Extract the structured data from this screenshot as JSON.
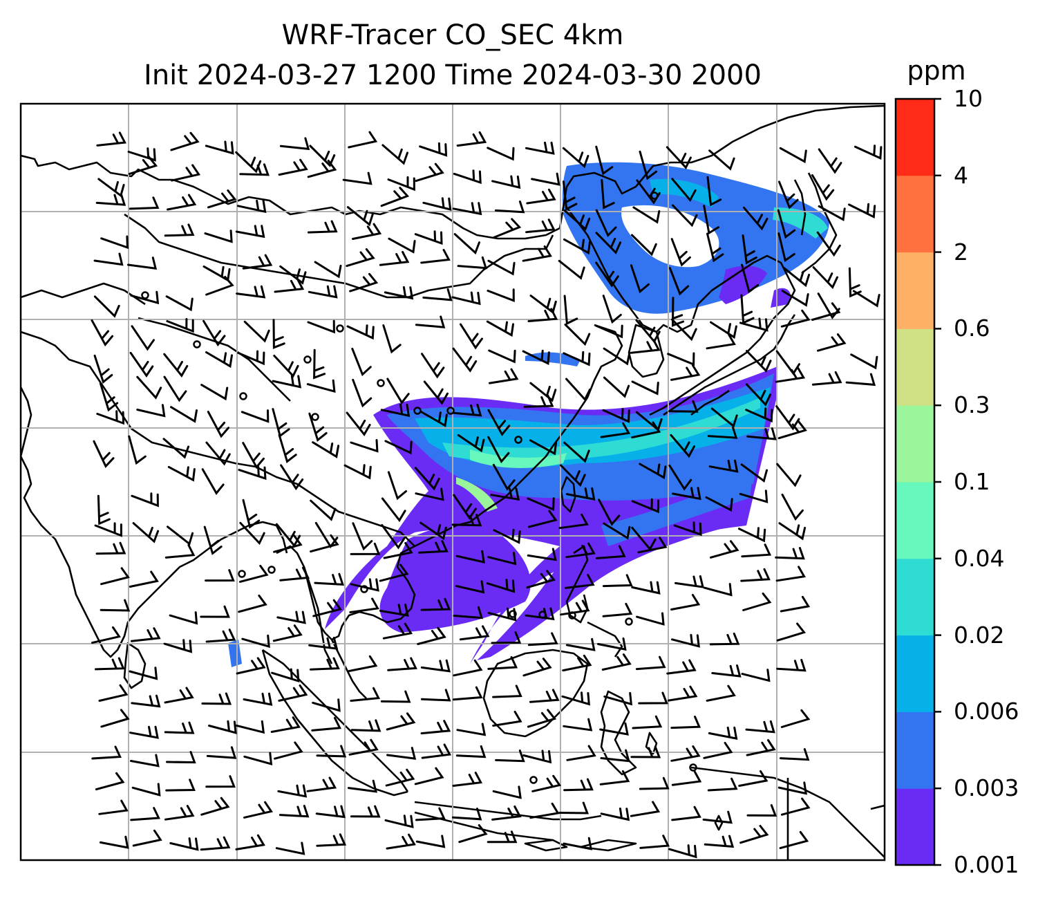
{
  "title": {
    "line1": "WRF-Tracer CO_SEC 4km",
    "line2": "Init 2024-03-27 1200 Time 2024-03-30 2000"
  },
  "colorbar": {
    "unit": "ppm",
    "levels": [
      {
        "label": "0.001",
        "color": "#6a2cf5"
      },
      {
        "label": "0.003",
        "color": "#3375f0"
      },
      {
        "label": "0.006",
        "color": "#06b1ea"
      },
      {
        "label": "0.02",
        "color": "#2fdcd4"
      },
      {
        "label": "0.04",
        "color": "#66f8bd"
      },
      {
        "label": "0.1",
        "color": "#9af59b"
      },
      {
        "label": "0.3",
        "color": "#cfe085"
      },
      {
        "label": "0.6",
        "color": "#feb164"
      },
      {
        "label": "2",
        "color": "#ff713e"
      },
      {
        "label": "4",
        "color": "#ff2b16"
      },
      {
        "label": "10",
        "color": null
      }
    ]
  },
  "map": {
    "field": "CO_SEC tracer concentration",
    "grid_lines": true,
    "wind_barbs": true
  }
}
